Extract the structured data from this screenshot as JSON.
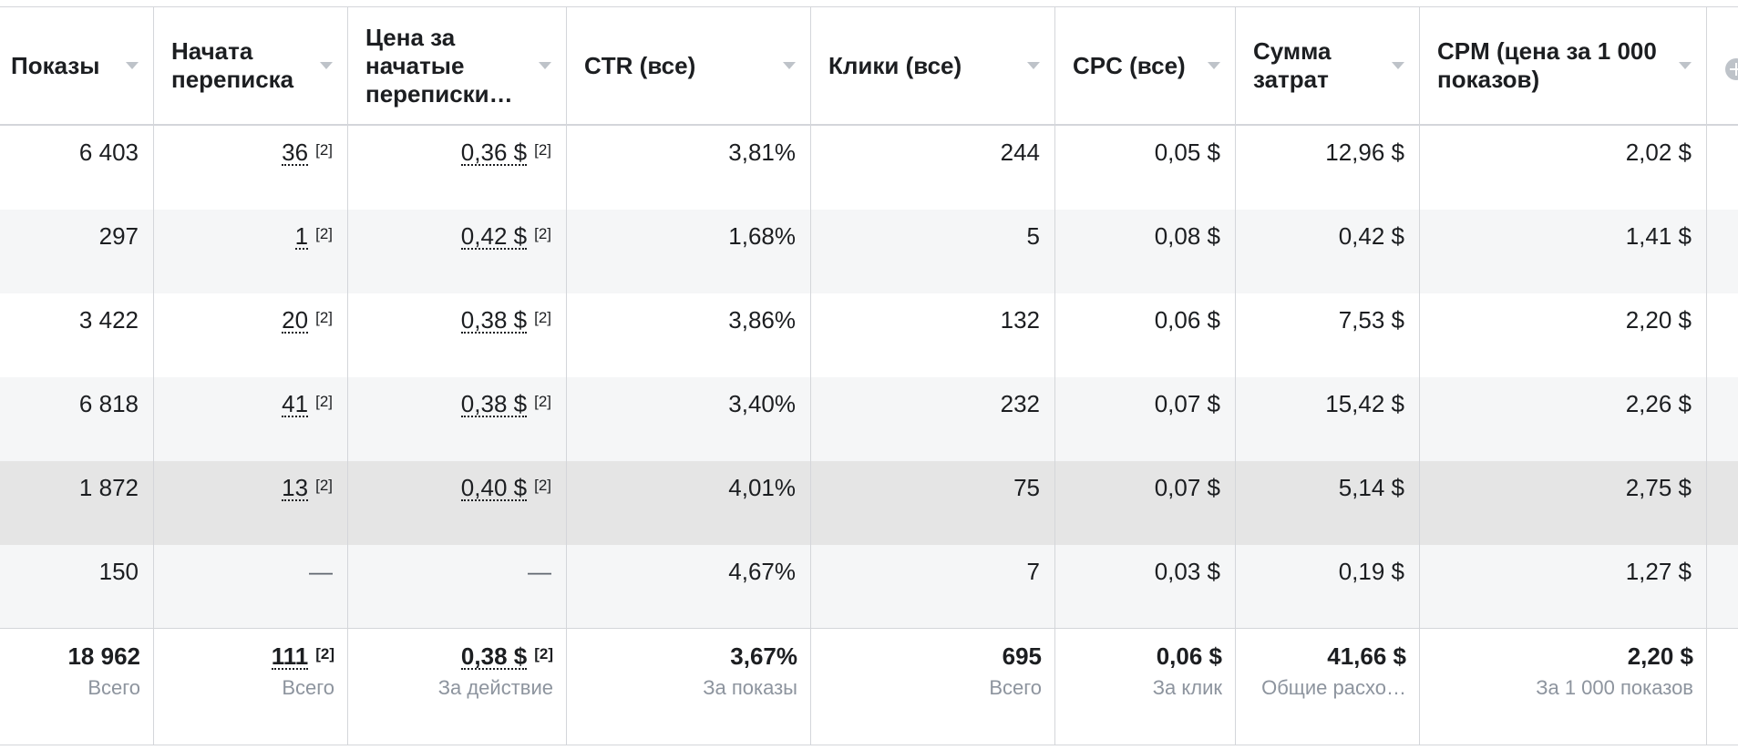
{
  "headers": [
    {
      "label": "Показы"
    },
    {
      "label": "Начата переписка"
    },
    {
      "label": "Цена за начатые переписки…"
    },
    {
      "label": "CTR (все)"
    },
    {
      "label": "Клики (все)"
    },
    {
      "label": "CPC (все)"
    },
    {
      "label": "Сумма затрат"
    },
    {
      "label": "CPM (цена за 1 000 показов)"
    }
  ],
  "rows": [
    {
      "impressions": "6 403",
      "conversations": "36",
      "conv_ref": "[2]",
      "cost_per_conv": "0,36 $",
      "cost_ref": "[2]",
      "ctr": "3,81%",
      "clicks": "244",
      "cpc": "0,05 $",
      "spend": "12,96 $",
      "cpm": "2,02 $"
    },
    {
      "impressions": "297",
      "conversations": "1",
      "conv_ref": "[2]",
      "cost_per_conv": "0,42 $",
      "cost_ref": "[2]",
      "ctr": "1,68%",
      "clicks": "5",
      "cpc": "0,08 $",
      "spend": "0,42 $",
      "cpm": "1,41 $"
    },
    {
      "impressions": "3 422",
      "conversations": "20",
      "conv_ref": "[2]",
      "cost_per_conv": "0,38 $",
      "cost_ref": "[2]",
      "ctr": "3,86%",
      "clicks": "132",
      "cpc": "0,06 $",
      "spend": "7,53 $",
      "cpm": "2,20 $"
    },
    {
      "impressions": "6 818",
      "conversations": "41",
      "conv_ref": "[2]",
      "cost_per_conv": "0,38 $",
      "cost_ref": "[2]",
      "ctr": "3,40%",
      "clicks": "232",
      "cpc": "0,07 $",
      "spend": "15,42 $",
      "cpm": "2,26 $"
    },
    {
      "impressions": "1 872",
      "conversations": "13",
      "conv_ref": "[2]",
      "cost_per_conv": "0,40 $",
      "cost_ref": "[2]",
      "ctr": "4,01%",
      "clicks": "75",
      "cpc": "0,07 $",
      "spend": "5,14 $",
      "cpm": "2,75 $"
    },
    {
      "impressions": "150",
      "conversations": "—",
      "conv_ref": "",
      "cost_per_conv": "—",
      "cost_ref": "",
      "ctr": "4,67%",
      "clicks": "7",
      "cpc": "0,03 $",
      "spend": "0,19 $",
      "cpm": "1,27 $"
    }
  ],
  "totals": [
    {
      "value": "18 962",
      "sub": "Всего",
      "ref": ""
    },
    {
      "value": "111",
      "sub": "Всего",
      "ref": "[2]"
    },
    {
      "value": "0,38 $",
      "sub": "За действие",
      "ref": "[2]"
    },
    {
      "value": "3,67%",
      "sub": "За показы",
      "ref": ""
    },
    {
      "value": "695",
      "sub": "Всего",
      "ref": ""
    },
    {
      "value": "0,06 $",
      "sub": "За клик",
      "ref": ""
    },
    {
      "value": "41,66 $",
      "sub": "Общие расхо…",
      "ref": ""
    },
    {
      "value": "2,20 $",
      "sub": "За 1 000 показов",
      "ref": ""
    }
  ],
  "colors": {
    "border": "#d4d6da",
    "row_alt": "#f5f6f7",
    "row_hover": "#e5e5e5",
    "text": "#1c1e21",
    "muted": "#8d949e"
  },
  "icons": {
    "sort": "caret-down-icon",
    "add_column": "add-column-icon"
  }
}
